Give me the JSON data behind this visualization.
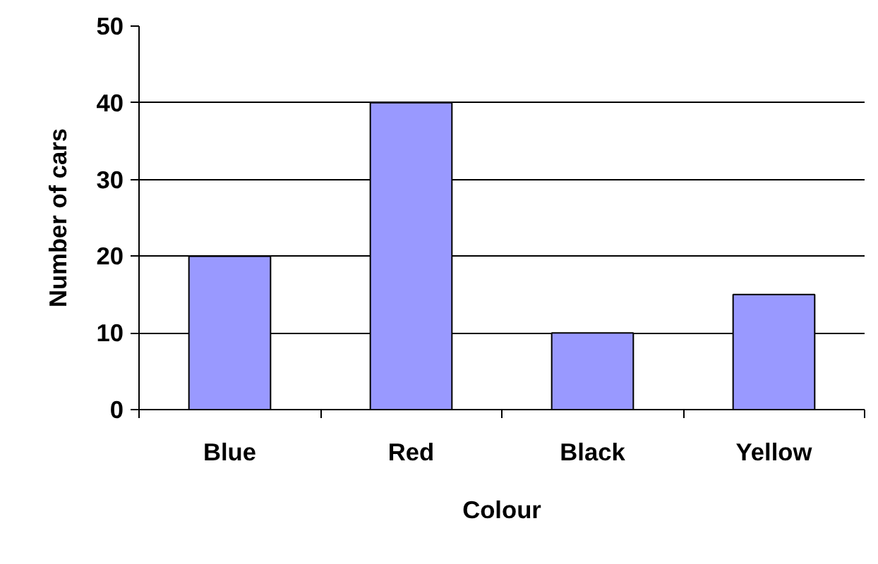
{
  "chart_data": {
    "type": "bar",
    "xlabel": "Colour",
    "ylabel": "Number of cars",
    "categories": [
      "Blue",
      "Red",
      "Black",
      "Yellow"
    ],
    "values": [
      20,
      40,
      10,
      15
    ],
    "color": "#9999ff",
    "ylim": [
      0,
      50
    ],
    "yticks": [
      0,
      10,
      20,
      30,
      40,
      50
    ],
    "grid": "y"
  }
}
